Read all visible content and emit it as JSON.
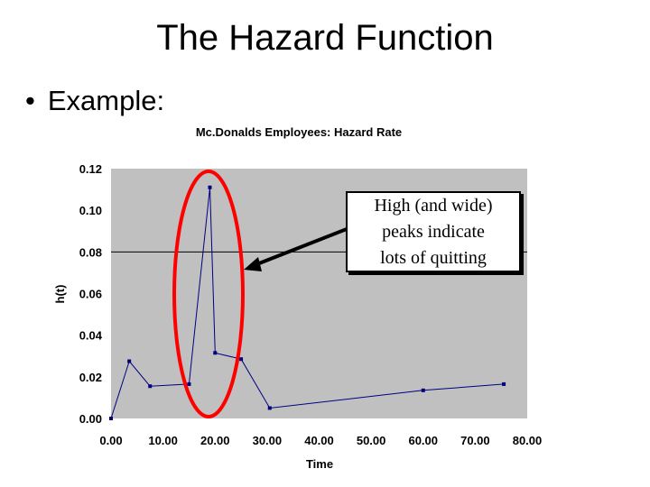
{
  "slide": {
    "title": "The Hazard Function",
    "bullet": "•",
    "bullet_text": "Example:"
  },
  "callout": {
    "text": "High (and wide)\npeaks indicate\nlots of quitting"
  },
  "colors": {
    "plot_background": "#c0c0c0",
    "series": "#00007f",
    "highlight_ellipse": "#ff0000",
    "gridline": "#000000"
  },
  "chart_data": {
    "type": "scatter",
    "title": "Mc.Donalds Employees:  Hazard Rate",
    "xlabel": "Time",
    "ylabel": "h(t)",
    "xlim": [
      0,
      80
    ],
    "ylim": [
      0,
      0.12
    ],
    "x_ticks": [
      "0.00",
      "10.00",
      "20.00",
      "30.00",
      "40.00",
      "50.00",
      "60.00",
      "70.00",
      "80.00"
    ],
    "y_ticks": [
      "0.00",
      "0.02",
      "0.04",
      "0.06",
      "0.08",
      "0.10",
      "0.12"
    ],
    "gridlines": [
      0.08
    ],
    "series": [
      {
        "points": [
          [
            0,
            0
          ],
          [
            3.5,
            0.0275
          ],
          [
            7.5,
            0.0155
          ],
          [
            15,
            0.0165
          ],
          [
            19,
            0.111
          ],
          [
            20,
            0.0315
          ],
          [
            25,
            0.0285
          ],
          [
            30.5,
            0.005
          ],
          [
            60,
            0.0135
          ],
          [
            75.5,
            0.0165
          ]
        ]
      }
    ]
  }
}
